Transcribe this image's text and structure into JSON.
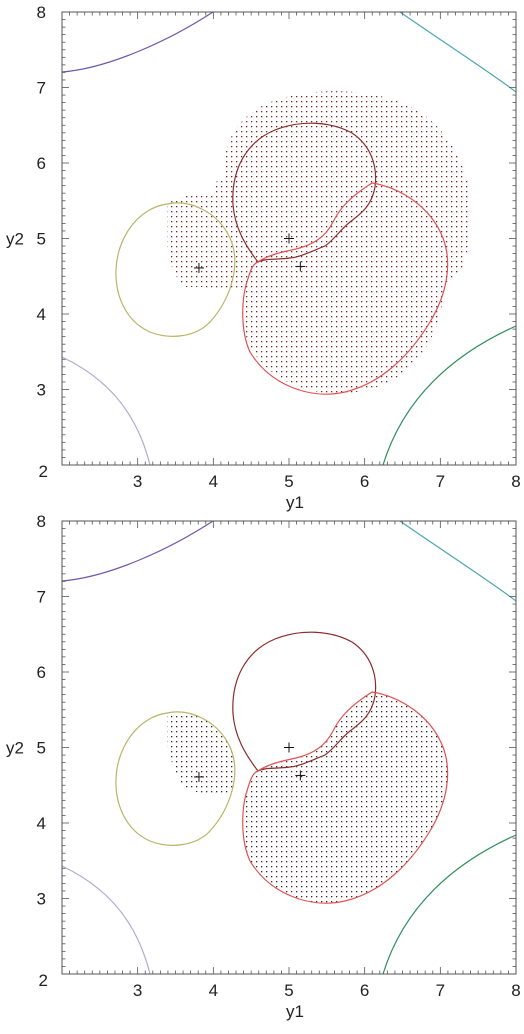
{
  "chart_data": [
    {
      "type": "scatter",
      "panel": "top",
      "xlabel": "y1",
      "ylabel": "y2",
      "xlim": [
        2,
        8
      ],
      "ylim": [
        2,
        8
      ],
      "x_tick_labels": [
        "3",
        "4",
        "5",
        "6",
        "7",
        "8"
      ],
      "y_tick_labels": [
        "2",
        "3",
        "4",
        "5",
        "6",
        "7",
        "8"
      ],
      "corner_tick_label": "2",
      "markers": [
        {
          "symbol": "+",
          "x": 3.81,
          "y": 4.61
        },
        {
          "symbol": "+",
          "x": 5.0,
          "y": 5.0
        },
        {
          "symbol": "+",
          "x": 5.15,
          "y": 4.63
        }
      ],
      "stipple_regions": [
        "union-region",
        "left-blob"
      ],
      "grid": false
    },
    {
      "type": "scatter",
      "panel": "bottom",
      "xlabel": "y1",
      "ylabel": "y2",
      "xlim": [
        2,
        8
      ],
      "ylim": [
        2,
        8
      ],
      "x_tick_labels": [
        "3",
        "4",
        "5",
        "6",
        "7",
        "8"
      ],
      "y_tick_labels": [
        "2",
        "3",
        "4",
        "5",
        "6",
        "7",
        "8"
      ],
      "corner_tick_label": "2",
      "markers": [
        {
          "symbol": "+",
          "x": 3.81,
          "y": 4.61
        },
        {
          "symbol": "+",
          "x": 5.0,
          "y": 5.0
        },
        {
          "symbol": "+",
          "x": 5.15,
          "y": 4.63
        }
      ],
      "stipple_regions": [
        "lower-red-interior",
        "left-circle-wedge"
      ],
      "grid": false
    }
  ],
  "colors": {
    "frame": "#555555",
    "stipple": "#7a2020",
    "curve_purple_top_left": "#6f58a8",
    "curve_cyan_top_right": "#4aa6b4",
    "curve_lavender_bottom_left": "#b2aad0",
    "curve_green_bottom_right": "#2f8f5a",
    "curve_olive_left": "#b7b56a",
    "curve_darkred_upper": "#8b2a2a",
    "curve_red_lower": "#e05050"
  }
}
